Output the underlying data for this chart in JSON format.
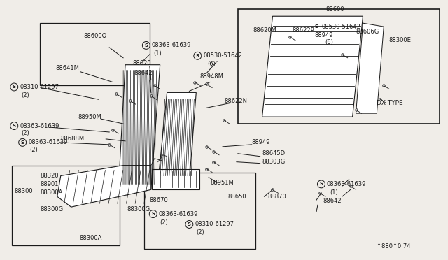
{
  "bg_color": "#f0ede8",
  "line_color": "#1a1a1a",
  "fig_w": 6.4,
  "fig_h": 3.72,
  "dpi": 100,
  "labels": {
    "top_left_box": "88600Q",
    "seat_label1": "88641M",
    "bolt1": "08310-61297",
    "bolt1_qty": "(2)",
    "seat_label2": "88620",
    "seat_label3": "88642",
    "bolt2": "08363-61639",
    "bolt2_qty1": "(1)",
    "bolt3": "08530-51642",
    "bolt3_qty1": "(6)",
    "seat_label4": "88948M",
    "seat_label5": "88622N",
    "seat_label6": "88950M",
    "bolt4": "08363-61639",
    "bolt4_qty": "(2)",
    "bolt5": "08363-61639",
    "bolt5_qty": "(2)",
    "seat_label7": "88688M",
    "seat_label8": "88320",
    "seat_label9": "88901",
    "seat_label10": "88300",
    "seat_label11": "88300A",
    "seat_label12": "88300G",
    "seat_label13": "88300G",
    "seat_label14": "88300A",
    "seat_label15": "88645D",
    "seat_label16": "88303G",
    "seat_label17": "88949",
    "seat_label18": "88951M",
    "bolt6": "08363-61639",
    "bolt6_qty": "(2)",
    "bolt7": "08310-61297",
    "bolt7_qty": "(2)",
    "seat_label19": "88670",
    "seat_label20": "88870",
    "seat_label21": "88650",
    "bolt8": "08363-61639",
    "bolt8_qty": "(1)",
    "seat_label22": "88642",
    "dx_title": "88600",
    "dx_label1": "88620M",
    "dx_label2": "88622P",
    "dx_bolt1": "08530-51642",
    "dx_label3": "88949",
    "dx_label4": "(6)",
    "dx_label5": "88606G",
    "dx_label6": "88300E",
    "dx_type": "DX TYPE",
    "diagram_id": "^880^0 74"
  }
}
